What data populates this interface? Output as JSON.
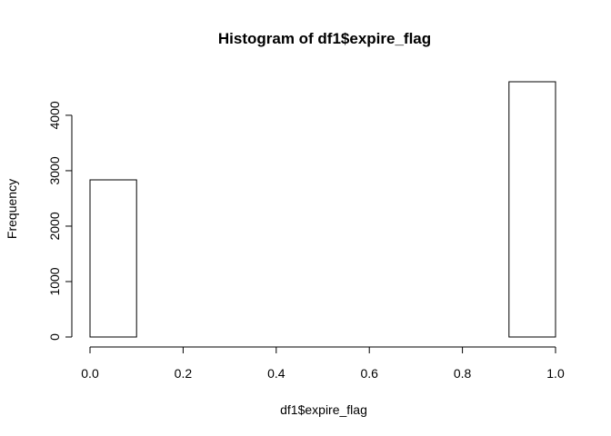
{
  "chart_data": {
    "type": "bar",
    "title": "Histogram of df1$expire_flag",
    "xlabel": "df1$expire_flag",
    "ylabel": "Frequency",
    "bins": [
      {
        "x0": 0.0,
        "x1": 0.1,
        "count": 2835
      },
      {
        "x0": 0.1,
        "x1": 0.2,
        "count": 0
      },
      {
        "x0": 0.2,
        "x1": 0.3,
        "count": 0
      },
      {
        "x0": 0.3,
        "x1": 0.4,
        "count": 0
      },
      {
        "x0": 0.4,
        "x1": 0.5,
        "count": 0
      },
      {
        "x0": 0.5,
        "x1": 0.6,
        "count": 0
      },
      {
        "x0": 0.6,
        "x1": 0.7,
        "count": 0
      },
      {
        "x0": 0.7,
        "x1": 0.8,
        "count": 0
      },
      {
        "x0": 0.8,
        "x1": 0.9,
        "count": 0
      },
      {
        "x0": 0.9,
        "x1": 1.0,
        "count": 4605
      }
    ],
    "xlim": [
      0.0,
      1.0
    ],
    "ylim": [
      0,
      4605
    ],
    "x_ticks": [
      {
        "value": 0.0,
        "label": "0.0"
      },
      {
        "value": 0.2,
        "label": "0.2"
      },
      {
        "value": 0.4,
        "label": "0.4"
      },
      {
        "value": 0.6,
        "label": "0.6"
      },
      {
        "value": 0.8,
        "label": "0.8"
      },
      {
        "value": 1.0,
        "label": "1.0"
      }
    ],
    "y_ticks": [
      {
        "value": 0,
        "label": "0"
      },
      {
        "value": 1000,
        "label": "1000"
      },
      {
        "value": 2000,
        "label": "2000"
      },
      {
        "value": 3000,
        "label": "3000"
      },
      {
        "value": 4000,
        "label": "4000"
      }
    ],
    "grid": false,
    "bar_fill": "#ffffff",
    "bar_stroke": "#000000"
  }
}
